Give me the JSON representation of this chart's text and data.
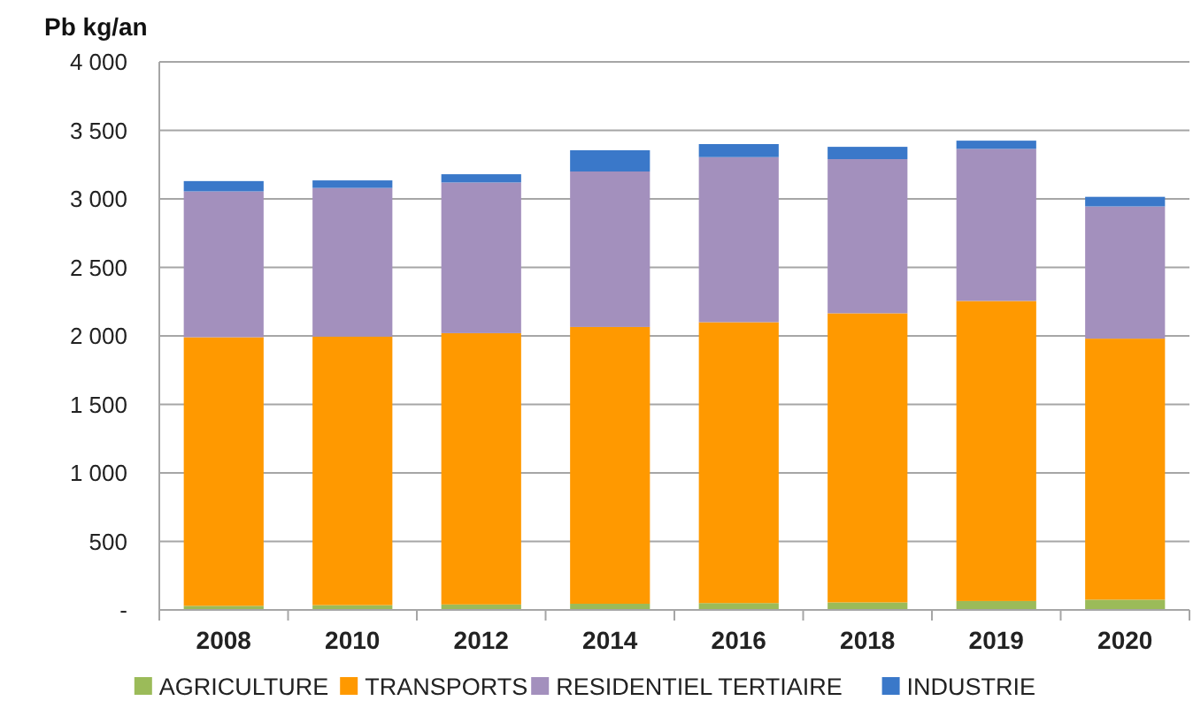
{
  "chart_data": {
    "type": "bar",
    "stacked": true,
    "ylabel": "Pb kg/an",
    "categories": [
      "2008",
      "2010",
      "2012",
      "2014",
      "2016",
      "2018",
      "2019",
      "2020"
    ],
    "series": [
      {
        "name": "AGRICULTURE",
        "color": "#9bbb59",
        "values": [
          30,
          35,
          40,
          45,
          50,
          55,
          65,
          75
        ]
      },
      {
        "name": "TRANSPORTS",
        "color": "#ff9900",
        "values": [
          1960,
          1960,
          1980,
          2020,
          2050,
          2110,
          2190,
          1905
        ]
      },
      {
        "name": "RESIDENTIEL TERTIAIRE",
        "color": "#a390bd",
        "values": [
          1065,
          1085,
          1100,
          1135,
          1205,
          1125,
          1110,
          965
        ]
      },
      {
        "name": "INDUSTRIE",
        "color": "#3a78c9",
        "values": [
          75,
          55,
          60,
          155,
          95,
          90,
          60,
          70
        ]
      }
    ],
    "ylim": [
      0,
      4000
    ],
    "yticks": [
      {
        "value": 0,
        "label": "-"
      },
      {
        "value": 500,
        "label": "500"
      },
      {
        "value": 1000,
        "label": "1 000"
      },
      {
        "value": 1500,
        "label": "1 500"
      },
      {
        "value": 2000,
        "label": "2 000"
      },
      {
        "value": 2500,
        "label": "2 500"
      },
      {
        "value": 3000,
        "label": "3 000"
      },
      {
        "value": 3500,
        "label": "3 500"
      },
      {
        "value": 4000,
        "label": "4 000"
      }
    ],
    "grid": "y",
    "legend": "bottom"
  }
}
